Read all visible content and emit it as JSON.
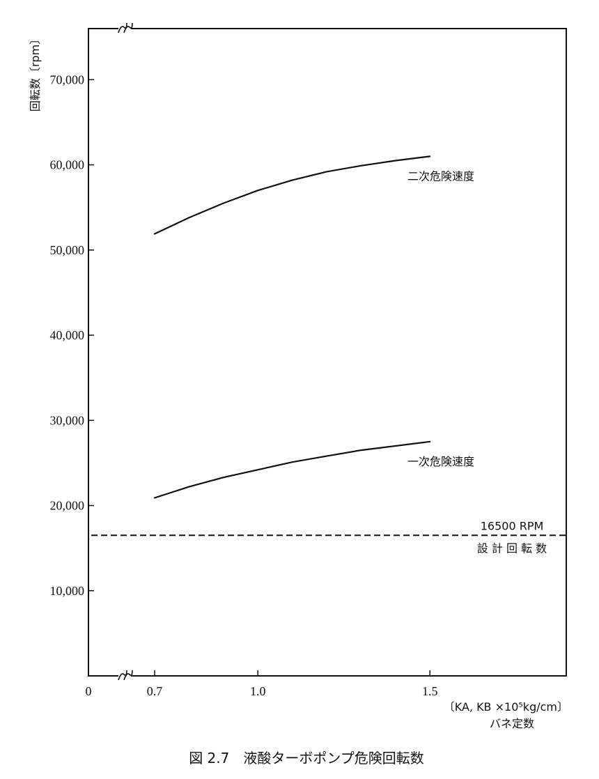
{
  "chart_data": {
    "type": "line",
    "ylabel": "回転数〔rpm〕",
    "xlabel_unit": "〔KA, KB  ×10⁵kg/cm〕",
    "xlabel": "バネ定数",
    "caption": "図 2.7　液酸ターボポンプ危険回転数",
    "x_ticks": [
      {
        "value": 0,
        "label": "0"
      },
      {
        "value": 0.7,
        "label": "0.7"
      },
      {
        "value": 1.0,
        "label": "1.0"
      },
      {
        "value": 1.5,
        "label": "1.5"
      }
    ],
    "y_ticks": [
      {
        "value": 10000,
        "label": "10,000"
      },
      {
        "value": 20000,
        "label": "20,000"
      },
      {
        "value": 30000,
        "label": "30,000"
      },
      {
        "value": 40000,
        "label": "40,000"
      },
      {
        "value": 50000,
        "label": "50,000"
      },
      {
        "value": 60000,
        "label": "60,000"
      },
      {
        "value": 70000,
        "label": "70,000"
      }
    ],
    "xlim": [
      0,
      1.89
    ],
    "ylim": [
      0,
      76000
    ],
    "x_axis_break": true,
    "series": [
      {
        "name": "二次危険速度",
        "style": "solid",
        "x": [
          0.7,
          0.8,
          0.9,
          1.0,
          1.1,
          1.2,
          1.3,
          1.4,
          1.5
        ],
        "y": [
          51900,
          53800,
          55500,
          57000,
          58200,
          59200,
          59900,
          60500,
          61000
        ]
      },
      {
        "name": "一次危険速度",
        "style": "solid",
        "x": [
          0.7,
          0.8,
          0.9,
          1.0,
          1.1,
          1.2,
          1.3,
          1.4,
          1.5
        ],
        "y": [
          20900,
          22200,
          23300,
          24200,
          25100,
          25800,
          26500,
          27000,
          27500
        ]
      }
    ],
    "reference_line": {
      "y": 16500,
      "style": "dashed",
      "label_top": "16500 RPM",
      "label_bottom": "設 計 回 転 数"
    },
    "grid": false,
    "legend": "none"
  }
}
